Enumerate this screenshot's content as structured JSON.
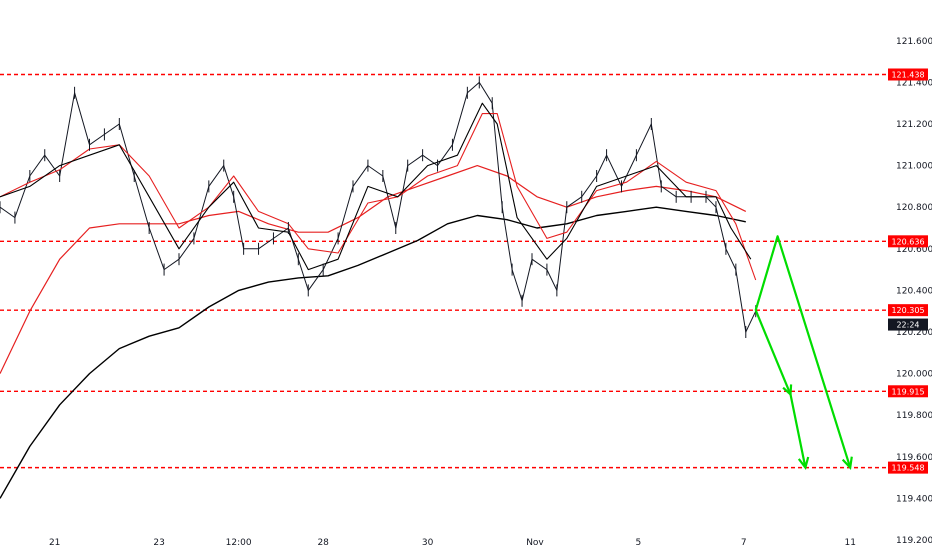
{
  "chart_data": {
    "type": "line",
    "title": "",
    "xlabel": "",
    "ylabel": "",
    "ylim": [
      119.2,
      121.7
    ],
    "grid": false,
    "y_ticks": [
      "121.600",
      "121.400",
      "121.200",
      "121.000",
      "120.800",
      "120.600",
      "120.400",
      "120.200",
      "120.000",
      "119.800",
      "119.600",
      "119.400",
      "119.200"
    ],
    "x_ticks": [
      {
        "label": "21",
        "i": 0.55
      },
      {
        "label": "23",
        "i": 1.6
      },
      {
        "label": "12:00",
        "i": 2.4
      },
      {
        "label": "28",
        "i": 3.25
      },
      {
        "label": "30",
        "i": 4.3
      },
      {
        "label": "Nov",
        "i": 5.38
      },
      {
        "label": "5",
        "i": 6.42
      },
      {
        "label": "7",
        "i": 7.48
      },
      {
        "label": "11",
        "i": 8.55
      }
    ],
    "price_series": [
      [
        0,
        120.8
      ],
      [
        0.15,
        120.75
      ],
      [
        0.3,
        120.95
      ],
      [
        0.45,
        121.05
      ],
      [
        0.6,
        120.95
      ],
      [
        0.75,
        121.35
      ],
      [
        0.9,
        121.1
      ],
      [
        1.05,
        121.15
      ],
      [
        1.2,
        121.2
      ],
      [
        1.35,
        120.95
      ],
      [
        1.5,
        120.7
      ],
      [
        1.65,
        120.5
      ],
      [
        1.8,
        120.55
      ],
      [
        1.95,
        120.65
      ],
      [
        2.1,
        120.9
      ],
      [
        2.25,
        121.0
      ],
      [
        2.35,
        120.85
      ],
      [
        2.45,
        120.6
      ],
      [
        2.6,
        120.6
      ],
      [
        2.75,
        120.65
      ],
      [
        2.9,
        120.7
      ],
      [
        3.0,
        120.55
      ],
      [
        3.1,
        120.4
      ],
      [
        3.25,
        120.5
      ],
      [
        3.4,
        120.65
      ],
      [
        3.55,
        120.9
      ],
      [
        3.7,
        121.0
      ],
      [
        3.85,
        120.95
      ],
      [
        3.98,
        120.7
      ],
      [
        4.1,
        121.0
      ],
      [
        4.25,
        121.05
      ],
      [
        4.4,
        121.0
      ],
      [
        4.55,
        121.1
      ],
      [
        4.7,
        121.35
      ],
      [
        4.82,
        121.4
      ],
      [
        4.95,
        121.3
      ],
      [
        5.05,
        120.8
      ],
      [
        5.15,
        120.5
      ],
      [
        5.25,
        120.35
      ],
      [
        5.35,
        120.55
      ],
      [
        5.5,
        120.5
      ],
      [
        5.6,
        120.4
      ],
      [
        5.7,
        120.8
      ],
      [
        5.85,
        120.85
      ],
      [
        6.0,
        120.95
      ],
      [
        6.1,
        121.05
      ],
      [
        6.25,
        120.9
      ],
      [
        6.4,
        121.05
      ],
      [
        6.55,
        121.2
      ],
      [
        6.65,
        120.9
      ],
      [
        6.8,
        120.85
      ],
      [
        6.95,
        120.85
      ],
      [
        7.1,
        120.85
      ],
      [
        7.2,
        120.8
      ],
      [
        7.3,
        120.6
      ],
      [
        7.4,
        120.5
      ],
      [
        7.5,
        120.2
      ],
      [
        7.6,
        120.3
      ]
    ],
    "ma_black_fast": [
      [
        0,
        120.85
      ],
      [
        0.3,
        120.9
      ],
      [
        0.6,
        121.0
      ],
      [
        0.9,
        121.05
      ],
      [
        1.2,
        121.1
      ],
      [
        1.5,
        120.85
      ],
      [
        1.8,
        120.6
      ],
      [
        2.1,
        120.8
      ],
      [
        2.35,
        120.92
      ],
      [
        2.6,
        120.7
      ],
      [
        2.9,
        120.68
      ],
      [
        3.1,
        120.5
      ],
      [
        3.4,
        120.55
      ],
      [
        3.7,
        120.9
      ],
      [
        4.0,
        120.85
      ],
      [
        4.3,
        121.0
      ],
      [
        4.6,
        121.05
      ],
      [
        4.85,
        121.3
      ],
      [
        5.0,
        121.2
      ],
      [
        5.2,
        120.75
      ],
      [
        5.5,
        120.55
      ],
      [
        5.7,
        120.65
      ],
      [
        6.0,
        120.9
      ],
      [
        6.3,
        120.95
      ],
      [
        6.6,
        121.0
      ],
      [
        6.9,
        120.85
      ],
      [
        7.2,
        120.85
      ],
      [
        7.35,
        120.7
      ],
      [
        7.55,
        120.55
      ]
    ],
    "ma_red_fast": [
      [
        0,
        120.85
      ],
      [
        0.3,
        120.92
      ],
      [
        0.6,
        120.98
      ],
      [
        0.9,
        121.08
      ],
      [
        1.2,
        121.1
      ],
      [
        1.5,
        120.95
      ],
      [
        1.8,
        120.7
      ],
      [
        2.1,
        120.8
      ],
      [
        2.35,
        120.95
      ],
      [
        2.6,
        120.78
      ],
      [
        2.9,
        120.72
      ],
      [
        3.1,
        120.6
      ],
      [
        3.4,
        120.58
      ],
      [
        3.7,
        120.82
      ],
      [
        4.0,
        120.85
      ],
      [
        4.3,
        120.95
      ],
      [
        4.6,
        121.0
      ],
      [
        4.85,
        121.25
      ],
      [
        5.0,
        121.25
      ],
      [
        5.2,
        120.9
      ],
      [
        5.5,
        120.65
      ],
      [
        5.7,
        120.68
      ],
      [
        6.0,
        120.88
      ],
      [
        6.3,
        120.92
      ],
      [
        6.6,
        121.02
      ],
      [
        6.9,
        120.92
      ],
      [
        7.2,
        120.88
      ],
      [
        7.4,
        120.72
      ],
      [
        7.6,
        120.45
      ]
    ],
    "ma_red_slow": [
      [
        0,
        120.0
      ],
      [
        0.3,
        120.3
      ],
      [
        0.6,
        120.55
      ],
      [
        0.9,
        120.7
      ],
      [
        1.2,
        120.72
      ],
      [
        1.5,
        120.72
      ],
      [
        1.8,
        120.72
      ],
      [
        2.1,
        120.76
      ],
      [
        2.4,
        120.78
      ],
      [
        2.7,
        120.72
      ],
      [
        3.0,
        120.68
      ],
      [
        3.3,
        120.68
      ],
      [
        3.6,
        120.75
      ],
      [
        3.9,
        120.85
      ],
      [
        4.2,
        120.9
      ],
      [
        4.5,
        120.95
      ],
      [
        4.8,
        121.0
      ],
      [
        5.1,
        120.95
      ],
      [
        5.4,
        120.85
      ],
      [
        5.7,
        120.8
      ],
      [
        6.0,
        120.85
      ],
      [
        6.3,
        120.88
      ],
      [
        6.6,
        120.9
      ],
      [
        6.9,
        120.88
      ],
      [
        7.2,
        120.85
      ],
      [
        7.5,
        120.78
      ]
    ],
    "ma_black_slow": [
      [
        0,
        119.4
      ],
      [
        0.3,
        119.65
      ],
      [
        0.6,
        119.85
      ],
      [
        0.9,
        120.0
      ],
      [
        1.2,
        120.12
      ],
      [
        1.5,
        120.18
      ],
      [
        1.8,
        120.22
      ],
      [
        2.1,
        120.32
      ],
      [
        2.4,
        120.4
      ],
      [
        2.7,
        120.44
      ],
      [
        3.0,
        120.46
      ],
      [
        3.3,
        120.47
      ],
      [
        3.6,
        120.52
      ],
      [
        3.9,
        120.58
      ],
      [
        4.2,
        120.64
      ],
      [
        4.5,
        120.72
      ],
      [
        4.8,
        120.76
      ],
      [
        5.1,
        120.74
      ],
      [
        5.4,
        120.7
      ],
      [
        5.7,
        120.72
      ],
      [
        6.0,
        120.76
      ],
      [
        6.3,
        120.78
      ],
      [
        6.6,
        120.8
      ],
      [
        6.9,
        120.78
      ],
      [
        7.2,
        120.76
      ],
      [
        7.5,
        120.73
      ]
    ],
    "levels": [
      {
        "value": 121.438,
        "label": "121.438"
      },
      {
        "value": 120.636,
        "label": "120.636"
      },
      {
        "value": 120.305,
        "label": "120.305"
      },
      {
        "value": 119.915,
        "label": "119.915"
      },
      {
        "value": 119.548,
        "label": "119.548"
      }
    ],
    "level_color": "#ff0000",
    "current_tag": {
      "label": "22:24",
      "value": 120.255
    },
    "projection_color": "#00dd00",
    "projection_path": [
      [
        7.6,
        120.305
      ],
      [
        7.95,
        119.9
      ],
      [
        8.1,
        119.548
      ]
    ],
    "projection_path_2": [
      [
        7.6,
        120.305
      ],
      [
        7.82,
        120.66
      ],
      [
        8.55,
        119.548
      ]
    ],
    "colors": {
      "price": "#131722",
      "ma_black": "#000000",
      "ma_red": "#e62020"
    }
  }
}
